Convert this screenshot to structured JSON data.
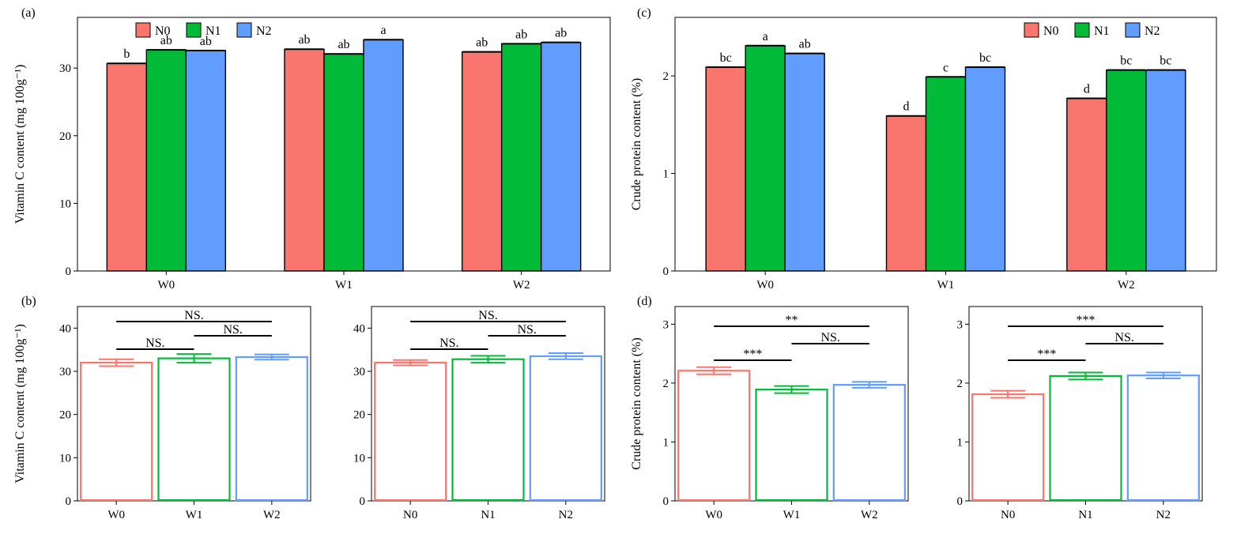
{
  "colors": {
    "N0": "#F8766D",
    "N1": "#00BA38",
    "N2": "#619CFF",
    "W0": "#F8766D",
    "W1": "#00BA38",
    "W2": "#619CFF",
    "axis": "#000000"
  },
  "chart_data": [
    {
      "id": "a",
      "panel_label": "(a)",
      "type": "bar",
      "categories": [
        "W0",
        "W1",
        "W2"
      ],
      "series": [
        {
          "name": "N0",
          "values": [
            30.7,
            32.8,
            32.4
          ]
        },
        {
          "name": "N1",
          "values": [
            32.7,
            32.1,
            33.6
          ]
        },
        {
          "name": "N2",
          "values": [
            32.6,
            34.2,
            33.8
          ]
        }
      ],
      "letters": [
        [
          "b",
          "ab",
          "ab"
        ],
        [
          "ab",
          "ab",
          "a"
        ],
        [
          "ab",
          "ab",
          "ab"
        ]
      ],
      "legend": [
        "N0",
        "N1",
        "N2"
      ],
      "ylim": [
        0,
        37.5
      ],
      "yticks": [
        0,
        10,
        20,
        30
      ],
      "ylabel": "Vitamin C content (mg 100g⁻¹)",
      "xlabel": ""
    },
    {
      "id": "c",
      "panel_label": "(c)",
      "type": "bar",
      "categories": [
        "W0",
        "W1",
        "W2"
      ],
      "series": [
        {
          "name": "N0",
          "values": [
            2.09,
            1.59,
            1.77
          ]
        },
        {
          "name": "N1",
          "values": [
            2.31,
            1.99,
            2.06
          ]
        },
        {
          "name": "N2",
          "values": [
            2.23,
            2.09,
            2.06
          ]
        }
      ],
      "letters": [
        [
          "bc",
          "a",
          "ab"
        ],
        [
          "d",
          "c",
          "bc"
        ],
        [
          "d",
          "bc",
          "bc"
        ]
      ],
      "legend": [
        "N0",
        "N1",
        "N2"
      ],
      "ylim": [
        0,
        2.6
      ],
      "yticks": [
        0,
        1,
        2
      ],
      "ylabel": "Crude protein content (%)",
      "xlabel": ""
    },
    {
      "id": "b1",
      "panel_label": "(b)",
      "type": "bar",
      "categories": [
        "W0",
        "W1",
        "W2"
      ],
      "values": [
        32.0,
        33.0,
        33.3
      ],
      "errors": [
        0.8,
        1.0,
        0.6
      ],
      "ylim": [
        0,
        45
      ],
      "yticks": [
        0,
        10,
        20,
        30,
        40
      ],
      "ylabel": "Vitamin C content (mg 100g⁻¹)",
      "comparisons": [
        {
          "from": 0,
          "to": 2,
          "label": "NS."
        },
        {
          "from": 1,
          "to": 2,
          "label": "NS."
        },
        {
          "from": 0,
          "to": 1,
          "label": "NS."
        }
      ]
    },
    {
      "id": "b2",
      "panel_label": "",
      "type": "bar",
      "categories": [
        "N0",
        "N1",
        "N2"
      ],
      "values": [
        32.0,
        32.8,
        33.5
      ],
      "errors": [
        0.6,
        0.8,
        0.7
      ],
      "ylim": [
        0,
        45
      ],
      "yticks": [
        0,
        10,
        20,
        30,
        40
      ],
      "ylabel": "",
      "comparisons": [
        {
          "from": 0,
          "to": 2,
          "label": "NS."
        },
        {
          "from": 1,
          "to": 2,
          "label": "NS."
        },
        {
          "from": 0,
          "to": 1,
          "label": "NS."
        }
      ]
    },
    {
      "id": "d1",
      "panel_label": "(d)",
      "type": "bar",
      "categories": [
        "W0",
        "W1",
        "W2"
      ],
      "values": [
        2.21,
        1.89,
        1.97
      ],
      "errors": [
        0.06,
        0.06,
        0.05
      ],
      "ylim": [
        0,
        3.3
      ],
      "yticks": [
        0,
        1,
        2,
        3
      ],
      "ylabel": "Crude protein content (%)",
      "comparisons": [
        {
          "from": 0,
          "to": 2,
          "label": "**"
        },
        {
          "from": 1,
          "to": 2,
          "label": "NS."
        },
        {
          "from": 0,
          "to": 1,
          "label": "***"
        }
      ]
    },
    {
      "id": "d2",
      "panel_label": "",
      "type": "bar",
      "categories": [
        "N0",
        "N1",
        "N2"
      ],
      "values": [
        1.81,
        2.12,
        2.13
      ],
      "errors": [
        0.06,
        0.06,
        0.05
      ],
      "ylim": [
        0,
        3.3
      ],
      "yticks": [
        0,
        1,
        2,
        3
      ],
      "ylabel": "",
      "comparisons": [
        {
          "from": 0,
          "to": 2,
          "label": "***"
        },
        {
          "from": 1,
          "to": 2,
          "label": "NS."
        },
        {
          "from": 0,
          "to": 1,
          "label": "***"
        }
      ]
    }
  ]
}
